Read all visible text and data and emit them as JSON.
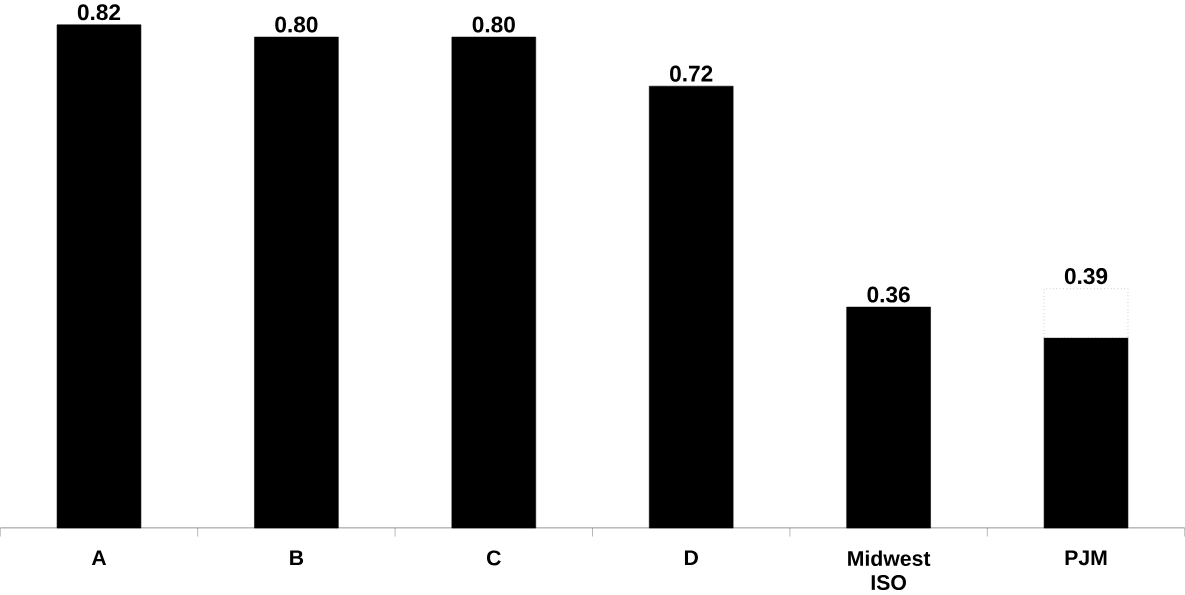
{
  "chart_data": {
    "type": "bar",
    "stacked": true,
    "categories": [
      "A",
      "B",
      "C",
      "D",
      "Midwest ISO",
      "PJM"
    ],
    "series": [
      {
        "color": "#000000",
        "values": [
          0.82,
          0.8,
          0.8,
          0.72,
          0.36,
          0.31
        ],
        "value_labels": [
          "0.82",
          "0.80",
          "0.80",
          "0.72",
          "0.36",
          null
        ]
      },
      {
        "color": "#ffffff",
        "line_style": "dotted",
        "values": [
          null,
          null,
          null,
          null,
          null,
          0.08
        ]
      }
    ],
    "totals": [
      null,
      null,
      null,
      null,
      null,
      "0.39"
    ]
  }
}
